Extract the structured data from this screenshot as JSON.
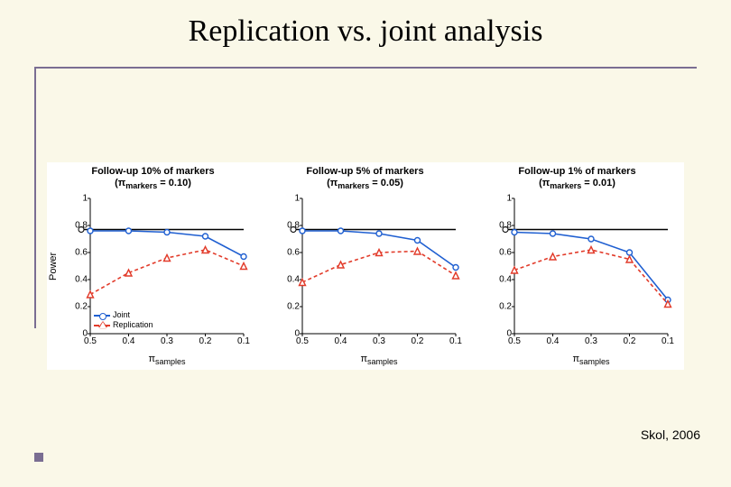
{
  "title": "Replication vs. joint analysis",
  "citation": "Skol, 2006",
  "rule_color": "#7a6e92",
  "background_color": "#faf8e8",
  "panel_background": "#ffffff",
  "axes": {
    "ylabel": "Power",
    "xlabel_html": "π<sub>samples</sub>",
    "ylim": [
      0,
      1
    ],
    "yticks": [
      0,
      0.2,
      0.4,
      0.6,
      0.8,
      1
    ],
    "xticks": [
      0.5,
      0.4,
      0.3,
      0.2,
      0.1
    ],
    "yref_value": 0.77,
    "yref_color": "#000000",
    "axis_color": "#000000",
    "tick_fontsize": 10,
    "label_fontsize": 11,
    "title_fontsize": 11
  },
  "series_style": {
    "joint": {
      "color": "#1f5fd1",
      "marker": "circle",
      "marker_fill": "#ffffff",
      "marker_size": 6,
      "dash": "none",
      "line_width": 1.6,
      "label": "Joint"
    },
    "replication": {
      "color": "#e23b2a",
      "marker": "triangle",
      "marker_fill": "#ffffff",
      "marker_size": 7,
      "dash": "4 3",
      "line_width": 1.6,
      "label": "Replication"
    }
  },
  "legend": {
    "panel_index": 0,
    "position": "lower-left",
    "items": [
      "Joint",
      "Replication"
    ]
  },
  "panels": [
    {
      "title": "Follow-up 10% of markers\n(πmarkers = 0.10)",
      "joint": {
        "x": [
          0.5,
          0.4,
          0.3,
          0.2,
          0.1
        ],
        "y": [
          0.76,
          0.76,
          0.75,
          0.72,
          0.57
        ]
      },
      "replication": {
        "x": [
          0.5,
          0.4,
          0.3,
          0.2,
          0.1
        ],
        "y": [
          0.29,
          0.45,
          0.56,
          0.62,
          0.5
        ]
      }
    },
    {
      "title": "Follow-up 5% of markers\n(πmarkers = 0.05)",
      "joint": {
        "x": [
          0.5,
          0.4,
          0.3,
          0.2,
          0.1
        ],
        "y": [
          0.76,
          0.76,
          0.74,
          0.69,
          0.49
        ]
      },
      "replication": {
        "x": [
          0.5,
          0.4,
          0.3,
          0.2,
          0.1
        ],
        "y": [
          0.38,
          0.51,
          0.6,
          0.61,
          0.43
        ]
      }
    },
    {
      "title": "Follow-up 1% of markers\n(πmarkers = 0.01)",
      "joint": {
        "x": [
          0.5,
          0.4,
          0.3,
          0.2,
          0.1
        ],
        "y": [
          0.75,
          0.74,
          0.7,
          0.6,
          0.25
        ]
      },
      "replication": {
        "x": [
          0.5,
          0.4,
          0.3,
          0.2,
          0.1
        ],
        "y": [
          0.47,
          0.57,
          0.62,
          0.55,
          0.22
        ]
      }
    }
  ]
}
